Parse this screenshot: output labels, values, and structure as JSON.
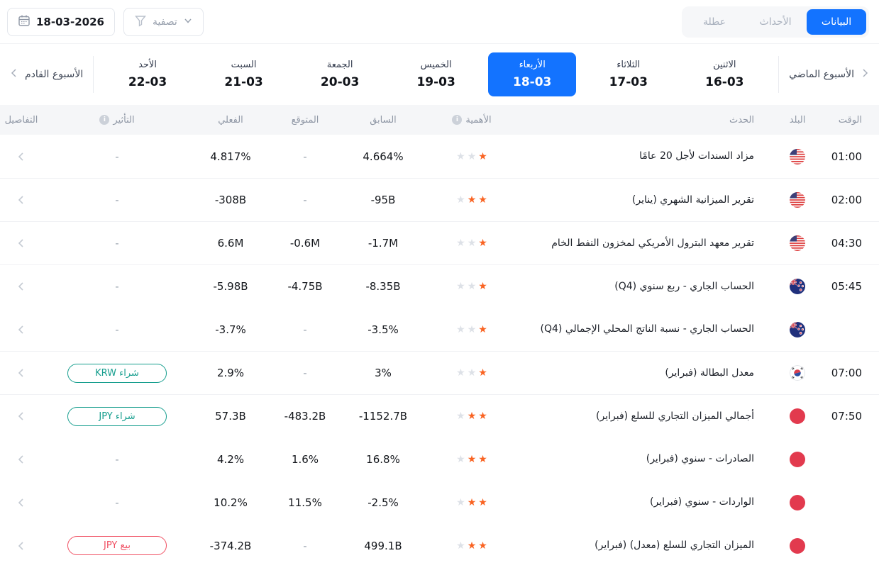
{
  "colors": {
    "accent_blue": "#1373ff",
    "star_orange": "#f96322",
    "buy_green": "#169e8e",
    "sell_red": "#f04f62"
  },
  "topbar": {
    "tabs": [
      {
        "key": "data",
        "label": "البيانات",
        "active": true
      },
      {
        "key": "events",
        "label": "الأحداث",
        "active": false
      },
      {
        "key": "holiday",
        "label": "عطلة",
        "active": false
      }
    ],
    "date_button": {
      "value": "18-03-2026",
      "icon": "calendar-icon"
    },
    "filter_button": {
      "label": "تصفية",
      "icon": "filter-funnel-icon"
    }
  },
  "week_nav": {
    "previous_week_label": "الأسبوع الماضي",
    "next_week_label": "الأسبوع القادم",
    "days": [
      {
        "name": "الاثنين",
        "date": "16-03",
        "selected": false
      },
      {
        "name": "الثلاثاء",
        "date": "17-03",
        "selected": false
      },
      {
        "name": "الأربعاء",
        "date": "18-03",
        "selected": true
      },
      {
        "name": "الخميس",
        "date": "19-03",
        "selected": false
      },
      {
        "name": "الجمعة",
        "date": "20-03",
        "selected": false
      },
      {
        "name": "السبت",
        "date": "21-03",
        "selected": false
      },
      {
        "name": "الأحد",
        "date": "22-03",
        "selected": false
      }
    ]
  },
  "table": {
    "headers": {
      "time": "الوقت",
      "country": "البلد",
      "event": "الحدث",
      "importance": "الأهمية",
      "previous": "السابق",
      "forecast": "المتوقع",
      "actual": "الفعلي",
      "impact": "التأثير",
      "details": "التفاصيل"
    },
    "importance_max": 3,
    "rows": [
      {
        "time": "01:00",
        "country": "us-flag",
        "event": "مزاد السندات لأجل 20 عامًا",
        "importance": 1,
        "previous": "4.664%",
        "forecast": "-",
        "actual": "4.817%",
        "impact": null,
        "group_start": true
      },
      {
        "time": "02:00",
        "country": "us-flag",
        "event": "تقرير الميزانية الشهري (يناير)",
        "importance": 2,
        "previous": "-95B",
        "forecast": "-",
        "actual": "-308B",
        "impact": null,
        "group_start": true
      },
      {
        "time": "04:30",
        "country": "us-flag",
        "event": "تقرير معهد البترول الأمريكي لمخزون النفط الخام",
        "importance": 1,
        "previous": "-1.7M",
        "forecast": "-0.6M",
        "actual": "6.6M",
        "impact": null,
        "group_start": true
      },
      {
        "time": "05:45",
        "country": "nz-flag",
        "event": "الحساب الجاري - ربع سنوي (Q4)",
        "importance": 1,
        "previous": "-8.35B",
        "forecast": "-4.75B",
        "actual": "-5.98B",
        "impact": null,
        "group_start": true
      },
      {
        "time": "",
        "country": "nz-flag",
        "event": "الحساب الجاري - نسبة الناتج المحلي الإجمالي (Q4)",
        "importance": 1,
        "previous": "-3.5%",
        "forecast": "-",
        "actual": "-3.7%",
        "impact": null,
        "group_start": false
      },
      {
        "time": "07:00",
        "country": "kr-flag",
        "event": "معدل البطالة (فبراير)",
        "importance": 1,
        "previous": "3%",
        "forecast": "-",
        "actual": "2.9%",
        "impact": {
          "type": "buy",
          "label": "شراء KRW"
        },
        "group_start": true
      },
      {
        "time": "07:50",
        "country": "jp-flag",
        "event": "أجمالي الميزان التجاري للسلع (فبراير)",
        "importance": 2,
        "previous": "-1152.7B",
        "forecast": "-483.2B",
        "actual": "57.3B",
        "impact": {
          "type": "buy",
          "label": "شراء JPY"
        },
        "group_start": true
      },
      {
        "time": "",
        "country": "jp-flag",
        "event": "الصادرات - سنوي (فبراير)",
        "importance": 2,
        "previous": "16.8%",
        "forecast": "1.6%",
        "actual": "4.2%",
        "impact": null,
        "group_start": false
      },
      {
        "time": "",
        "country": "jp-flag",
        "event": "الواردات - سنوي (فبراير)",
        "importance": 2,
        "previous": "-2.5%",
        "forecast": "11.5%",
        "actual": "10.2%",
        "impact": null,
        "group_start": false
      },
      {
        "time": "",
        "country": "jp-flag",
        "event": "الميزان التجاري للسلع (معدل) (فبراير)",
        "importance": 2,
        "previous": "499.1B",
        "forecast": "-",
        "actual": "-374.2B",
        "impact": {
          "type": "sell",
          "label": "بيع JPY"
        },
        "group_start": false
      }
    ]
  }
}
